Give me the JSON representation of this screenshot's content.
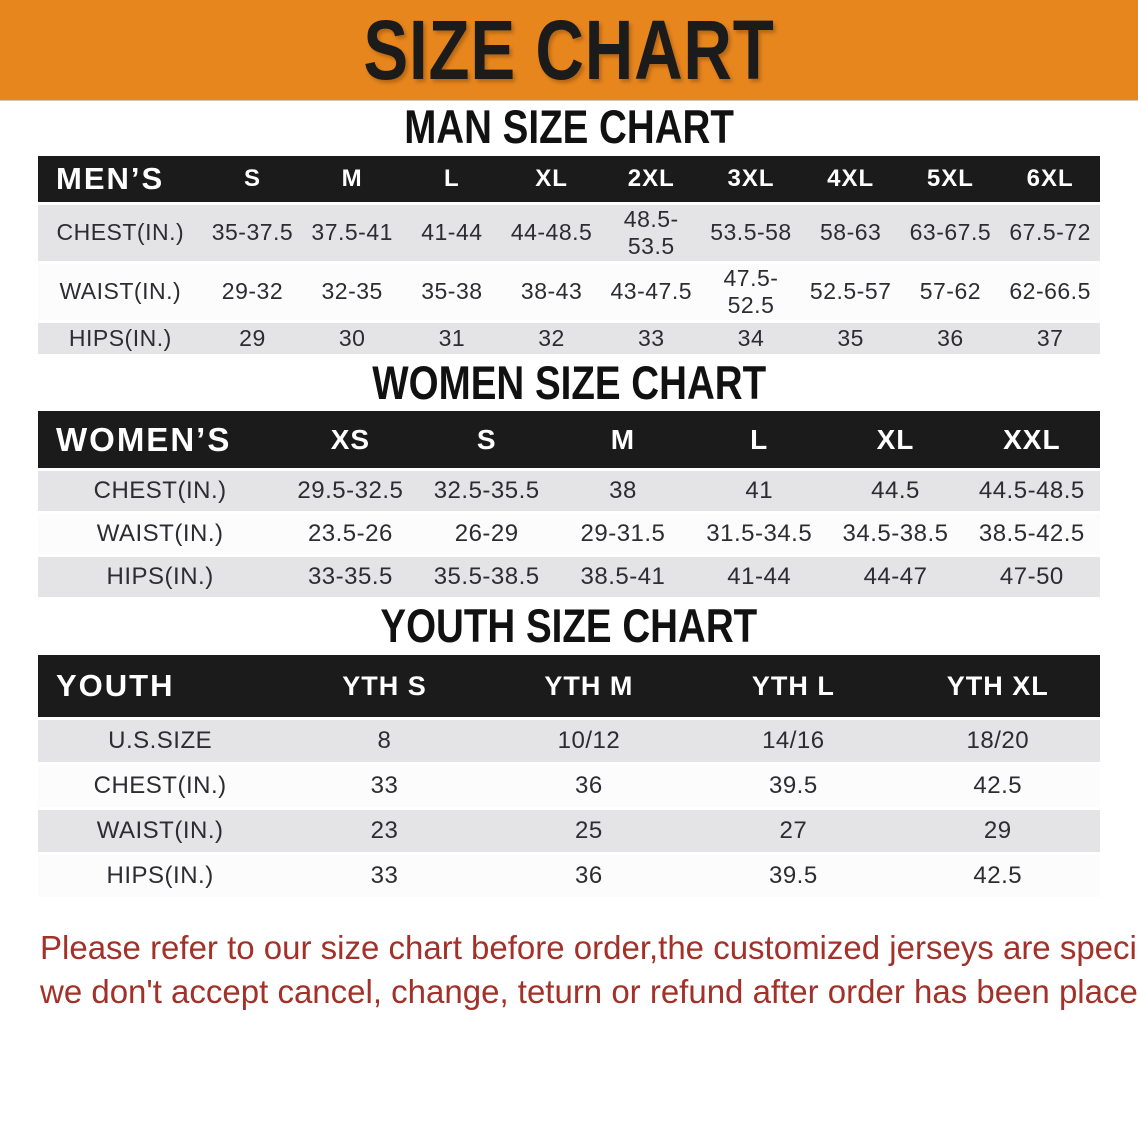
{
  "banner": {
    "title": "SIZE CHART",
    "bg_color": "#E8861E",
    "text_color": "#1B1B1B"
  },
  "sections": [
    {
      "heading": "MAN SIZE CHART",
      "table": {
        "header": [
          "MEN’S",
          "S",
          "M",
          "L",
          "XL",
          "2XL",
          "3XL",
          "4XL",
          "5XL",
          "6XL"
        ],
        "rows": [
          {
            "label": "CHEST(IN.)",
            "values": [
              "35-37.5",
              "37.5-41",
              "41-44",
              "44-48.5",
              "48.5-53.5",
              "53.5-58",
              "58-63",
              "63-67.5",
              "67.5-72"
            ]
          },
          {
            "label": "WAIST(IN.)",
            "values": [
              "29-32",
              "32-35",
              "35-38",
              "38-43",
              "43-47.5",
              "47.5-52.5",
              "52.5-57",
              "57-62",
              "62-66.5"
            ]
          },
          {
            "label": "HIPS(IN.)",
            "values": [
              "29",
              "30",
              "31",
              "32",
              "33",
              "34",
              "35",
              "36",
              "37"
            ]
          }
        ]
      }
    },
    {
      "heading": "WOMEN SIZE CHART",
      "table": {
        "header": [
          "WOMEN’S",
          "XS",
          "S",
          "M",
          "L",
          "XL",
          "XXL"
        ],
        "rows": [
          {
            "label": "CHEST(IN.)",
            "values": [
              "29.5-32.5",
              "32.5-35.5",
              "38",
              "41",
              "44.5",
              "44.5-48.5"
            ]
          },
          {
            "label": "WAIST(IN.)",
            "values": [
              "23.5-26",
              "26-29",
              "29-31.5",
              "31.5-34.5",
              "34.5-38.5",
              "38.5-42.5"
            ]
          },
          {
            "label": "HIPS(IN.)",
            "values": [
              "33-35.5",
              "35.5-38.5",
              "38.5-41",
              "41-44",
              "44-47",
              "47-50"
            ]
          }
        ]
      }
    },
    {
      "heading": "YOUTH SIZE CHART",
      "table": {
        "header": [
          "YOUTH",
          "YTH S",
          "YTH M",
          "YTH L",
          "YTH XL"
        ],
        "rows": [
          {
            "label": "U.S.SIZE",
            "values": [
              "8",
              "10/12",
              "14/16",
              "18/20"
            ]
          },
          {
            "label": "CHEST(IN.)",
            "values": [
              "33",
              "36",
              "39.5",
              "42.5"
            ]
          },
          {
            "label": "WAIST(IN.)",
            "values": [
              "23",
              "25",
              "27",
              "29"
            ]
          },
          {
            "label": "HIPS(IN.)",
            "values": [
              "33",
              "36",
              "39.5",
              "42.5"
            ]
          }
        ]
      }
    }
  ],
  "disclaimer": {
    "line1": "Please refer to our size chart before order,the customized jerseys are special products,",
    "line2": "we don't accept cancel, change, teturn or refund after order has been placed!",
    "color": "#A33129"
  },
  "colors": {
    "header_band": "#1B1B1B",
    "row_shaded": "#E4E4E6",
    "row_plain": "#FCFCFD"
  }
}
